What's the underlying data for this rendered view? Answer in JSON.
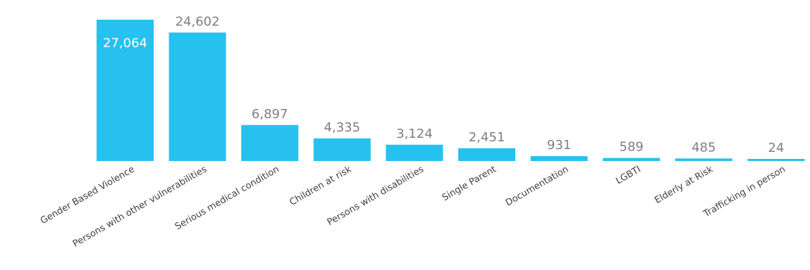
{
  "chart_data": {
    "type": "bar",
    "title": "",
    "xlabel": "",
    "ylabel": "",
    "ylim": [
      0,
      27064
    ],
    "grid": false,
    "bar_color": "#26C1EF",
    "categories": [
      "Gender Based Violence",
      "Persons with other vulnerabilities",
      "Serious medical condition",
      "Children at risk",
      "Persons with disabilities",
      "Single Parent",
      "Documentation",
      "LGBTI",
      "Elderly at Risk",
      "Trafficking in person"
    ],
    "values": [
      27064,
      24602,
      6897,
      4335,
      3124,
      2451,
      931,
      589,
      485,
      24
    ],
    "value_labels": [
      "27,064",
      "24,602",
      "6,897",
      "4,335",
      "3,124",
      "2,451",
      "931",
      "589",
      "485",
      "24"
    ]
  }
}
